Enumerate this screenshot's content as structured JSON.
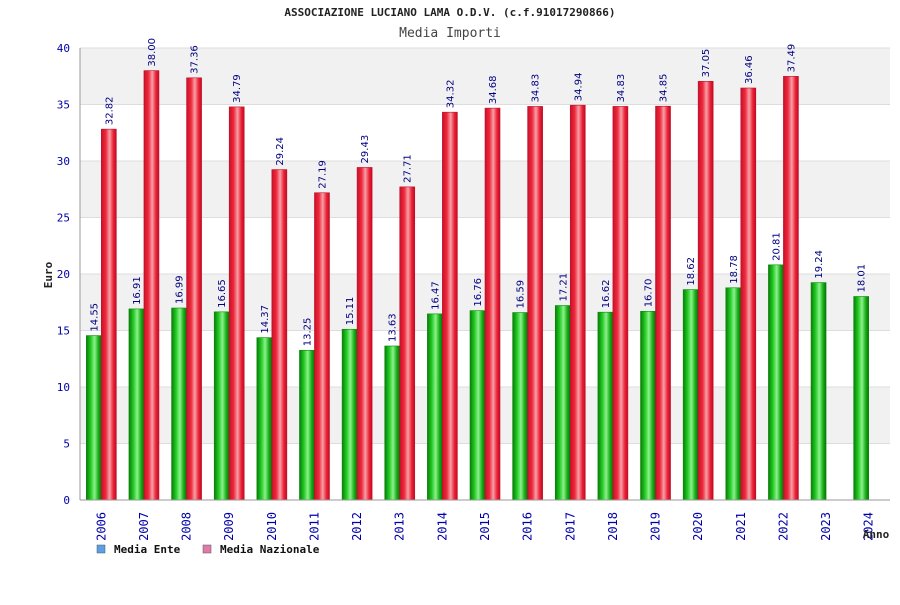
{
  "chart_data": {
    "type": "bar",
    "title": "ASSOCIAZIONE LUCIANO LAMA O.D.V. (c.f.91017290866)",
    "subtitle": "Media Importi",
    "xlabel": "Anno",
    "ylabel": "Euro",
    "ylim": [
      0,
      40
    ],
    "yticks": [
      0,
      5,
      10,
      15,
      20,
      25,
      30,
      35,
      40
    ],
    "grid": true,
    "legend_position": "bottom-left",
    "categories": [
      "2006",
      "2007",
      "2008",
      "2009",
      "2010",
      "2011",
      "2012",
      "2013",
      "2014",
      "2015",
      "2016",
      "2017",
      "2018",
      "2019",
      "2020",
      "2021",
      "2022",
      "2023",
      "2024"
    ],
    "series": [
      {
        "name": "Media Ente",
        "color": "#12b312",
        "legend_color": "#5aa0e6",
        "values": [
          14.55,
          16.91,
          16.99,
          16.65,
          14.37,
          13.25,
          15.11,
          13.63,
          16.47,
          16.76,
          16.59,
          17.21,
          16.62,
          16.7,
          18.62,
          18.78,
          20.81,
          19.24,
          18.01
        ],
        "labels": [
          "14.55",
          "16.91",
          "16.99",
          "16.65",
          "14.37",
          "13.25",
          "15.11",
          "13.63",
          "16.47",
          "16.76",
          "16.59",
          "17.21",
          "16.62",
          "16.70",
          "18.62",
          "18.78",
          "20.81",
          "19.24",
          "18.01"
        ]
      },
      {
        "name": "Media Nazionale",
        "color": "#ee1c2e",
        "legend_color": "#e07aa8",
        "values": [
          32.82,
          38.0,
          37.36,
          34.79,
          29.24,
          27.19,
          29.43,
          27.71,
          34.32,
          34.68,
          34.83,
          34.94,
          34.83,
          34.85,
          37.05,
          36.46,
          37.49,
          null,
          null
        ],
        "labels": [
          "32.82",
          "38.00",
          "37.36",
          "34.79",
          "29.24",
          "27.19",
          "29.43",
          "27.71",
          "34.32",
          "34.68",
          "34.83",
          "34.94",
          "34.83",
          "34.85",
          "37.05",
          "36.46",
          "37.49",
          null,
          null
        ]
      }
    ]
  }
}
